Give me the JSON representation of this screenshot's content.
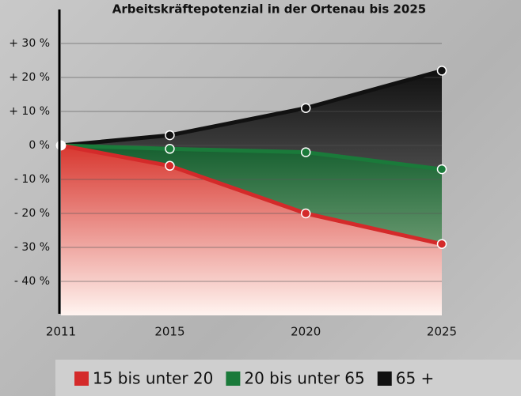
{
  "chart_data": {
    "type": "area",
    "title": "Arbeitskräftepotenzial in der Ortenau bis 2025",
    "x": [
      2011,
      2015,
      2020,
      2025
    ],
    "xlim": [
      2011,
      2025
    ],
    "xticks": [
      2011,
      2015,
      2020,
      2025
    ],
    "ylim": [
      -50,
      40
    ],
    "yticks": [
      {
        "value": 30,
        "label": "+ 30 %"
      },
      {
        "value": 20,
        "label": "+ 20 %"
      },
      {
        "value": 10,
        "label": "+ 10 %"
      },
      {
        "value": 0,
        "label": "0 %"
      },
      {
        "value": -10,
        "label": "- 10 %"
      },
      {
        "value": -20,
        "label": "- 20 %"
      },
      {
        "value": -30,
        "label": "- 30 %"
      },
      {
        "value": -40,
        "label": "- 40 %"
      }
    ],
    "grid": true,
    "series": [
      {
        "name": "15 bis unter 20",
        "color": "#d42a2a",
        "values": [
          0,
          -6,
          -20,
          -29
        ]
      },
      {
        "name": "20 bis unter 65",
        "color": "#1a7a3a",
        "values": [
          0,
          -1,
          -2,
          -7
        ]
      },
      {
        "name": "65 +",
        "color": "#111111",
        "values": [
          0,
          3,
          11,
          22
        ]
      }
    ]
  }
}
